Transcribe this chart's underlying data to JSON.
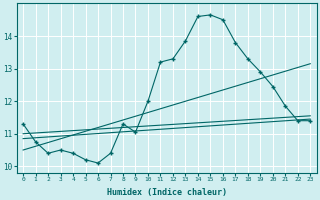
{
  "xlabel": "Humidex (Indice chaleur)",
  "bg_color": "#d0eef0",
  "line_color": "#006666",
  "grid_color": "#ffffff",
  "xlim": [
    -0.5,
    23.5
  ],
  "ylim": [
    9.8,
    15.0
  ],
  "yticks": [
    10,
    11,
    12,
    13,
    14
  ],
  "xticks": [
    0,
    1,
    2,
    3,
    4,
    5,
    6,
    7,
    8,
    9,
    10,
    11,
    12,
    13,
    14,
    15,
    16,
    17,
    18,
    19,
    20,
    21,
    22,
    23
  ],
  "curve_x": [
    0,
    1,
    2,
    3,
    4,
    5,
    6,
    7,
    8,
    9,
    10,
    11,
    12,
    13,
    14,
    15,
    16,
    17,
    18,
    19,
    20,
    21,
    22,
    23
  ],
  "curve_y": [
    11.3,
    10.75,
    10.4,
    10.5,
    10.4,
    10.2,
    10.1,
    10.4,
    11.3,
    11.05,
    12.0,
    13.2,
    13.3,
    13.85,
    14.6,
    14.65,
    14.5,
    13.8,
    13.3,
    12.9,
    12.45,
    11.85,
    11.4,
    11.4
  ],
  "line1_x": [
    0,
    23
  ],
  "line1_y": [
    10.5,
    13.15
  ],
  "line2_x": [
    0,
    23
  ],
  "line2_y": [
    10.85,
    11.45
  ],
  "line3_x": [
    0,
    23
  ],
  "line3_y": [
    11.0,
    11.55
  ]
}
